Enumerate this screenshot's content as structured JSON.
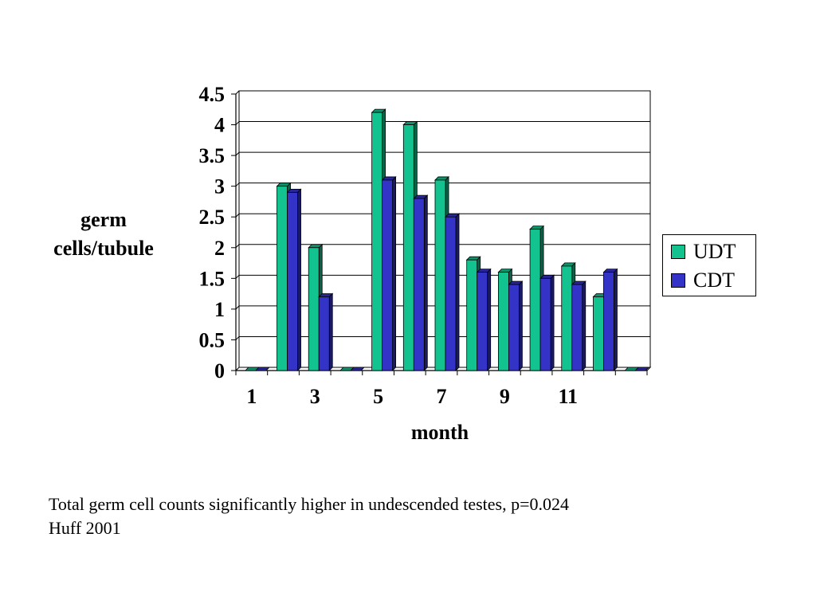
{
  "chart_data": {
    "type": "bar",
    "categories": [
      "1",
      "2",
      "3",
      "4",
      "5",
      "6",
      "7",
      "8",
      "9",
      "10",
      "11",
      "12",
      "13"
    ],
    "tick_labels": [
      "1",
      "3",
      "5",
      "7",
      "9",
      "11"
    ],
    "tick_categories": [
      1,
      3,
      5,
      7,
      9,
      11
    ],
    "series": [
      {
        "name": "UDT",
        "color": "#13C38F",
        "values": [
          0,
          3.0,
          2.0,
          0,
          4.2,
          4.0,
          3.1,
          1.8,
          1.6,
          2.3,
          1.7,
          1.2,
          0
        ]
      },
      {
        "name": "CDT",
        "color": "#3333C8",
        "values": [
          0,
          2.9,
          1.2,
          0,
          3.1,
          2.8,
          2.5,
          1.6,
          1.4,
          1.5,
          1.4,
          1.6,
          0
        ]
      }
    ],
    "ylim": [
      0,
      4.5
    ],
    "yticks": [
      "0",
      "0.5",
      "1",
      "1.5",
      "2",
      "2.5",
      "3",
      "3.5",
      "4",
      "4.5"
    ],
    "xlabel": "month",
    "ylabel_line1": "germ",
    "ylabel_line2": "cells/tubule",
    "grid": true,
    "legend_position": "right"
  },
  "caption": {
    "line1": "Total germ cell counts significantly higher in undescended testes, p=0.024",
    "line2": "Huff 2001"
  }
}
